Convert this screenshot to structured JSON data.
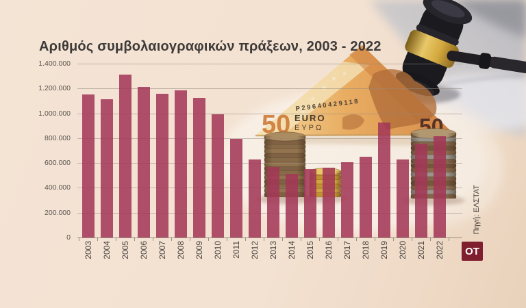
{
  "title": "Αριθμός συμβολαιογραφικών πράξεων, 2003 - 2022",
  "source_note": "Πηγή: ΕΛΣΤΑΤ",
  "logo": {
    "text": "OT",
    "bg_color": "#7e1e2e",
    "text_color": "#ffffff"
  },
  "colors": {
    "background": "#f3e1d1",
    "bar": "#a33757",
    "gridline": "#948a82",
    "title_text": "#3d3a38",
    "axis_text": "#48433f"
  },
  "chart_data": {
    "type": "bar",
    "title": "Αριθμός συμβολαιογραφικών πράξεων, 2003 - 2022",
    "categories": [
      "2003",
      "2004",
      "2005",
      "2006",
      "2007",
      "2008",
      "2009",
      "2010",
      "2011",
      "2012",
      "2013",
      "2014",
      "2015",
      "2016",
      "2017",
      "2018",
      "2019",
      "2020",
      "2021",
      "2022"
    ],
    "values": [
      1150000,
      1115000,
      1310000,
      1210000,
      1160000,
      1185000,
      1125000,
      990000,
      795000,
      630000,
      570000,
      510000,
      550000,
      560000,
      605000,
      650000,
      925000,
      630000,
      755000,
      815000
    ],
    "xlabel": "",
    "ylabel": "",
    "ylim": [
      0,
      1400000
    ],
    "ytick_labels": [
      "1.400.000",
      "1.200.000",
      "1.000.000",
      "800.000",
      "600.000",
      "400.000",
      "200.000",
      "0"
    ],
    "grid": true,
    "legend": false
  },
  "decoration": {
    "banknote": {
      "serial": "P29640429118",
      "denomination": "50",
      "currency_latin": "EURO",
      "currency_greek": "ΕΥΡΩ",
      "denomination_right": "50"
    },
    "icons": [
      "gavel-icon",
      "euro-banknote-roof-icon",
      "coin-stack-icon"
    ]
  }
}
